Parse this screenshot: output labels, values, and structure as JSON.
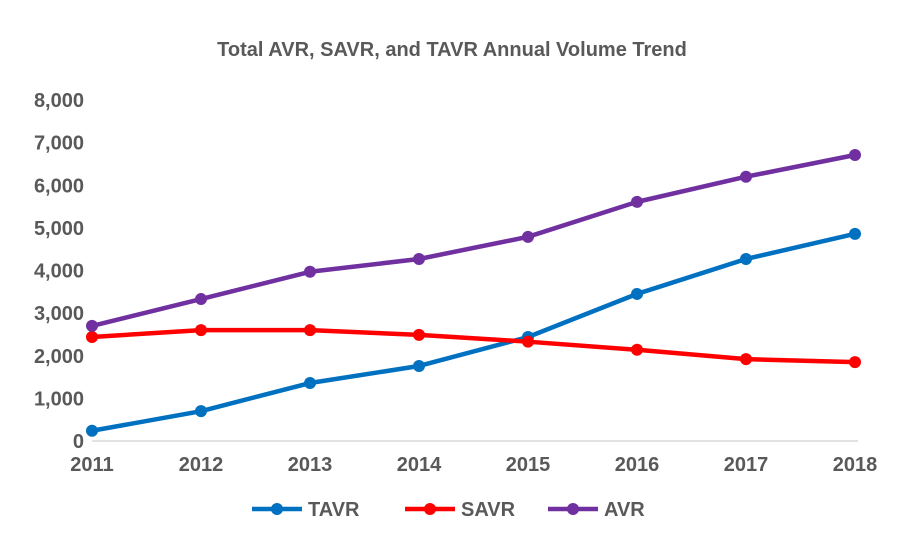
{
  "chart_data": {
    "type": "line",
    "title": "Total AVR, SAVR, and TAVR Annual Volume Trend",
    "xlabel": "",
    "ylabel": "",
    "categories": [
      "2011",
      "2012",
      "2013",
      "2014",
      "2015",
      "2016",
      "2017",
      "2018"
    ],
    "ylim": [
      0,
      8000
    ],
    "yticks": [
      "0",
      "1,000",
      "2,000",
      "3,000",
      "4,000",
      "5,000",
      "6,000",
      "7,000",
      "8,000"
    ],
    "grid": false,
    "legend_position": "bottom",
    "series": [
      {
        "name": "TAVR",
        "color": "#0070C0",
        "values": [
          240,
          700,
          1360,
          1760,
          2440,
          3450,
          4270,
          4860
        ]
      },
      {
        "name": "SAVR",
        "color": "#FF0000",
        "values": [
          2440,
          2600,
          2600,
          2490,
          2330,
          2140,
          1920,
          1850
        ]
      },
      {
        "name": "AVR",
        "color": "#7030A0",
        "values": [
          2700,
          3330,
          3970,
          4270,
          4790,
          5610,
          6200,
          6710
        ]
      }
    ]
  }
}
